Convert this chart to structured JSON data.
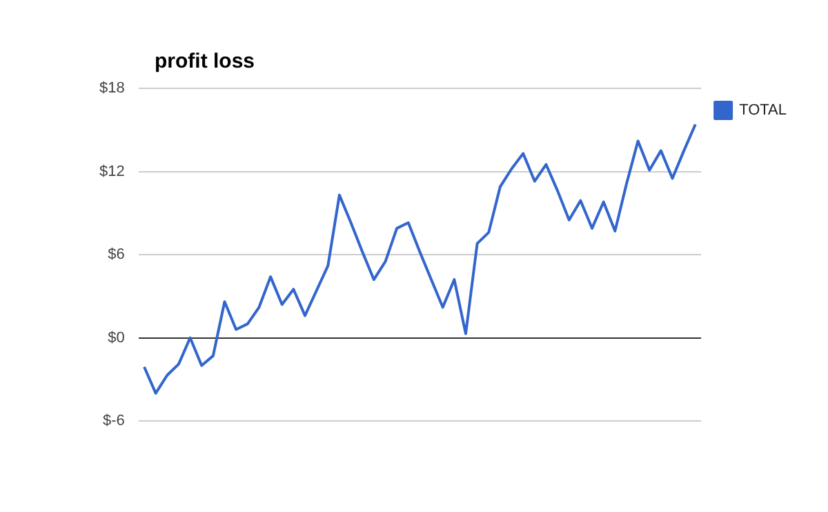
{
  "chart_data": {
    "type": "line",
    "title": "profit loss",
    "categories": [
      null,
      null,
      null,
      null,
      null,
      null,
      null,
      null,
      null,
      null,
      null,
      null,
      null,
      null,
      null,
      null,
      null,
      null,
      null,
      null,
      null,
      null,
      null,
      null,
      null,
      null,
      null,
      null,
      null,
      null,
      null,
      null,
      null,
      null,
      null,
      null,
      null,
      null,
      null,
      null,
      null,
      null,
      null,
      null,
      null,
      null,
      null,
      null,
      null
    ],
    "series": [
      {
        "name": "TOTAL",
        "color": "#3366cc",
        "values": [
          -2.1,
          -4.0,
          -2.7,
          -1.9,
          0.0,
          -2.0,
          -1.3,
          2.6,
          0.6,
          1.0,
          2.2,
          4.4,
          2.4,
          3.5,
          1.6,
          3.4,
          5.2,
          10.3,
          8.3,
          6.2,
          4.2,
          5.5,
          7.9,
          8.3,
          6.2,
          4.2,
          2.2,
          4.2,
          0.3,
          6.8,
          7.6,
          10.9,
          12.2,
          13.3,
          11.3,
          12.5,
          10.6,
          8.5,
          9.9,
          7.9,
          9.8,
          7.7,
          11.1,
          14.2,
          12.1,
          13.5,
          11.5,
          13.5,
          15.4
        ]
      }
    ],
    "ylim": [
      -6,
      18
    ],
    "yticks": [
      {
        "value": -6,
        "label": "$-6"
      },
      {
        "value": 0,
        "label": "$0"
      },
      {
        "value": 6,
        "label": "$6"
      },
      {
        "value": 12,
        "label": "$12"
      },
      {
        "value": 18,
        "label": "$18"
      }
    ],
    "grid": "y",
    "legend": "top right",
    "marker": "none",
    "line_style": "solid"
  }
}
